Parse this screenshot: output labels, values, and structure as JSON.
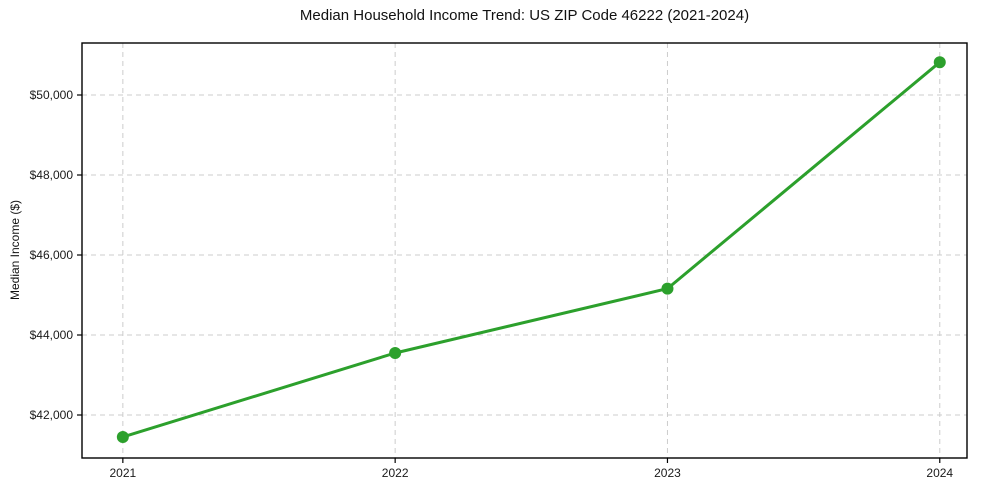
{
  "chart_data": {
    "type": "line",
    "title": "Median Household Income Trend: US ZIP Code 46222 (2021-2024)",
    "xlabel": "",
    "ylabel": "Median Income ($)",
    "x": [
      2021,
      2022,
      2023,
      2024
    ],
    "xtick_labels": [
      "2021",
      "2022",
      "2023",
      "2024"
    ],
    "series": [
      {
        "name": "Median Household Income",
        "values": [
          41450,
          43550,
          45160,
          50820
        ],
        "color": "#2ca02c",
        "marker": "circle",
        "marker_size": 6,
        "line_width": 3
      }
    ],
    "xlim": [
      2020.85,
      2024.1
    ],
    "ylim": [
      40925,
      51300
    ],
    "yticks": [
      42000,
      44000,
      46000,
      48000,
      50000
    ],
    "ytick_labels": [
      "$42,000",
      "$44,000",
      "$46,000",
      "$48,000",
      "$50,000"
    ],
    "grid": true,
    "grid_style": "dashed",
    "grid_color": "#cccccc",
    "axis_color": "#000000",
    "tick_label_color": "#1a1a1a",
    "background": "#ffffff",
    "legend": "none"
  }
}
